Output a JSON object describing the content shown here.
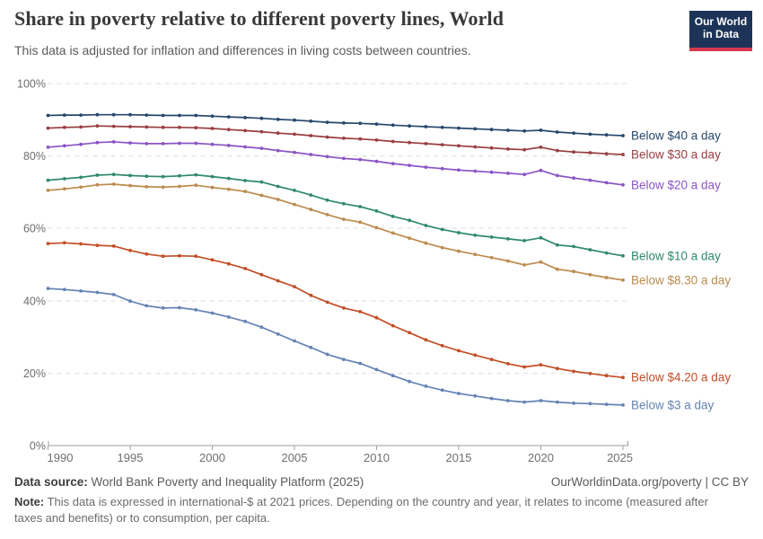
{
  "header": {
    "title": "Share in poverty relative to different poverty lines, World",
    "subtitle": "This data is adjusted for inflation and differences in living costs between countries.",
    "logo": {
      "line1": "Our World",
      "line2": "in Data",
      "bg_color": "#1d3458",
      "bar_color": "#d73a4e"
    }
  },
  "chart_data": {
    "type": "line",
    "title": "Share in poverty relative to different poverty lines, World",
    "xlabel": "",
    "ylabel": "",
    "ylim": [
      0,
      100
    ],
    "yticks": [
      0,
      20,
      40,
      60,
      80,
      100
    ],
    "ytick_suffix": "%",
    "xticks": [
      1990,
      1995,
      2000,
      2005,
      2010,
      2015,
      2020,
      2025
    ],
    "grid": "horizontal-dashed",
    "legend_position": "line-end-labels",
    "axis_color": "#9e9e9e",
    "grid_color": "#dcdcdc",
    "tick_label_color": "#6e6e6e",
    "x": [
      1990,
      1991,
      1992,
      1993,
      1994,
      1995,
      1996,
      1997,
      1998,
      1999,
      2000,
      2001,
      2002,
      2003,
      2004,
      2005,
      2006,
      2007,
      2008,
      2009,
      2010,
      2011,
      2012,
      2013,
      2014,
      2015,
      2016,
      2017,
      2018,
      2019,
      2020,
      2021,
      2022,
      2023,
      2024,
      2025
    ],
    "series": [
      {
        "name": "Below $40 a day",
        "color": "#26486b",
        "values": [
          91.2,
          91.3,
          91.3,
          91.4,
          91.4,
          91.4,
          91.3,
          91.2,
          91.2,
          91.2,
          91.0,
          90.8,
          90.6,
          90.4,
          90.1,
          89.9,
          89.6,
          89.3,
          89.1,
          89.0,
          88.8,
          88.5,
          88.3,
          88.1,
          87.9,
          87.7,
          87.5,
          87.3,
          87.1,
          86.9,
          87.1,
          86.6,
          86.3,
          86.0,
          85.8,
          85.6
        ]
      },
      {
        "name": "Below $30 a day",
        "color": "#9a3e40",
        "values": [
          87.7,
          87.9,
          88.0,
          88.3,
          88.2,
          88.1,
          88.0,
          87.9,
          87.9,
          87.8,
          87.6,
          87.3,
          87.0,
          86.7,
          86.3,
          86.0,
          85.6,
          85.2,
          84.9,
          84.7,
          84.4,
          84.0,
          83.7,
          83.4,
          83.1,
          82.8,
          82.5,
          82.2,
          81.9,
          81.7,
          82.4,
          81.5,
          81.1,
          80.9,
          80.6,
          80.4
        ]
      },
      {
        "name": "Below $20 a day",
        "color": "#8b54c4",
        "values": [
          82.4,
          82.8,
          83.2,
          83.7,
          83.9,
          83.6,
          83.4,
          83.4,
          83.5,
          83.5,
          83.2,
          82.9,
          82.5,
          82.1,
          81.5,
          81.0,
          80.4,
          79.8,
          79.3,
          79.0,
          78.5,
          77.9,
          77.4,
          76.9,
          76.5,
          76.1,
          75.8,
          75.5,
          75.2,
          74.9,
          76.0,
          74.6,
          73.9,
          73.3,
          72.6,
          72.0
        ]
      },
      {
        "name": "Below $10 a day",
        "color": "#2f8a68",
        "values": [
          73.3,
          73.7,
          74.1,
          74.7,
          74.9,
          74.6,
          74.4,
          74.3,
          74.5,
          74.8,
          74.3,
          73.8,
          73.2,
          72.8,
          71.6,
          70.5,
          69.2,
          67.8,
          66.8,
          66.0,
          64.8,
          63.3,
          62.2,
          60.8,
          59.7,
          58.8,
          58.1,
          57.6,
          57.1,
          56.6,
          57.4,
          55.4,
          55.0,
          54.1,
          53.2,
          52.4
        ]
      },
      {
        "name": "Below $8.30 a day",
        "color": "#bc8b4e",
        "values": [
          70.5,
          70.9,
          71.4,
          72.0,
          72.2,
          71.8,
          71.5,
          71.4,
          71.6,
          71.9,
          71.3,
          70.8,
          70.2,
          69.1,
          68.0,
          66.6,
          65.2,
          63.8,
          62.5,
          61.7,
          60.2,
          58.7,
          57.3,
          55.9,
          54.7,
          53.7,
          52.8,
          51.9,
          51.0,
          49.9,
          50.7,
          48.7,
          48.1,
          47.2,
          46.4,
          45.7
        ]
      },
      {
        "name": "Below $4.20 a day",
        "color": "#c24e26",
        "values": [
          55.8,
          56.0,
          55.7,
          55.3,
          55.1,
          53.9,
          52.9,
          52.3,
          52.4,
          52.3,
          51.3,
          50.2,
          48.9,
          47.2,
          45.5,
          43.9,
          41.5,
          39.6,
          38.0,
          37.0,
          35.3,
          33.1,
          31.2,
          29.2,
          27.6,
          26.2,
          25.0,
          23.8,
          22.6,
          21.7,
          22.3,
          21.3,
          20.5,
          19.9,
          19.3,
          18.8
        ]
      },
      {
        "name": "Below $3 a day",
        "color": "#6583b4",
        "values": [
          43.4,
          43.1,
          42.7,
          42.3,
          41.7,
          39.9,
          38.6,
          38.0,
          38.1,
          37.5,
          36.6,
          35.5,
          34.3,
          32.7,
          30.8,
          28.9,
          27.1,
          25.2,
          23.8,
          22.7,
          21.0,
          19.3,
          17.7,
          16.4,
          15.3,
          14.4,
          13.7,
          13.0,
          12.4,
          12.0,
          12.4,
          12.0,
          11.7,
          11.6,
          11.4,
          11.2
        ]
      }
    ]
  },
  "footer": {
    "source_label": "Data source:",
    "source_value": "World Bank Poverty and Inequality Platform (2025)",
    "attribution": "OurWorldinData.org/poverty | CC BY",
    "note_label": "Note:",
    "note_text": "This data is expressed in international-$ at 2021 prices. Depending on the country and year, it relates to income (measured after taxes and benefits) or to consumption, per capita."
  }
}
